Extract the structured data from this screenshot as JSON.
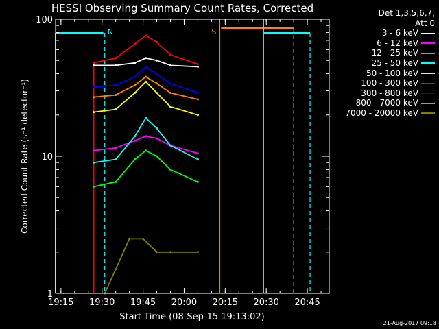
{
  "title": "HESSI Observing Summary Count Rates, Corrected",
  "legend_header": [
    "Det 1,3,5,6,7,",
    "Att 0"
  ],
  "footer_date": "21-Aug-2017 09:18",
  "chart_data": {
    "type": "line",
    "xlabel": "Start Time (08-Sep-15 19:13:02)",
    "ylabel": "Corrected Count Rate (s⁻¹ detector⁻¹)",
    "xlim": [
      "19:13:02",
      "20:53:00"
    ],
    "ylim": [
      1,
      100
    ],
    "y_scale": "log",
    "x_ticks": [
      "19:15",
      "19:30",
      "19:45",
      "20:00",
      "20:15",
      "20:30",
      "20:45"
    ],
    "y_ticks": [
      "1",
      "10",
      "100"
    ],
    "series": [
      {
        "name": "3 - 6 keV",
        "color": "#ffffff",
        "x": [
          "19:27",
          "19:35",
          "19:42",
          "19:46",
          "19:50",
          "19:55",
          "20:05"
        ],
        "values": [
          46,
          46,
          48,
          52,
          50,
          46,
          45
        ]
      },
      {
        "name": "6 - 12 keV",
        "color": "#ff00ff",
        "x": [
          "19:27",
          "19:35",
          "19:42",
          "19:46",
          "19:50",
          "19:55",
          "20:05"
        ],
        "values": [
          11,
          11.5,
          13,
          14,
          13.5,
          12,
          10.5
        ]
      },
      {
        "name": "12 - 25 keV",
        "color": "#00ff00",
        "x": [
          "19:27",
          "19:35",
          "19:42",
          "19:46",
          "19:50",
          "19:55",
          "20:05"
        ],
        "values": [
          6,
          6.5,
          9.5,
          11,
          10,
          8,
          6.5
        ]
      },
      {
        "name": "25 - 50 keV",
        "color": "#00ffff",
        "x": [
          "19:27",
          "19:35",
          "19:42",
          "19:46",
          "19:50",
          "19:55",
          "20:05"
        ],
        "values": [
          9,
          9.5,
          14,
          19,
          16,
          12,
          9.5
        ]
      },
      {
        "name": "50 - 100 keV",
        "color": "#ffff00",
        "x": [
          "19:27",
          "19:35",
          "19:42",
          "19:46",
          "19:50",
          "19:55",
          "20:05"
        ],
        "values": [
          21,
          22,
          29,
          35,
          29,
          23,
          20
        ]
      },
      {
        "name": "100 - 300 keV",
        "color": "#ff0000",
        "x": [
          "19:27",
          "19:35",
          "19:42",
          "19:46",
          "19:50",
          "19:55",
          "20:05"
        ],
        "values": [
          48,
          52,
          66,
          76,
          68,
          55,
          47
        ]
      },
      {
        "name": "300 - 800 keV",
        "color": "#0000ff",
        "x": [
          "19:27",
          "19:35",
          "19:42",
          "19:46",
          "19:50",
          "19:55",
          "20:05"
        ],
        "values": [
          32,
          33,
          38,
          45,
          40,
          34,
          29
        ]
      },
      {
        "name": "800 - 7000 keV",
        "color": "#ff8000",
        "x": [
          "19:27",
          "19:35",
          "19:42",
          "19:46",
          "19:50",
          "19:55",
          "20:05"
        ],
        "values": [
          27,
          28,
          33,
          38,
          34,
          29,
          26
        ]
      },
      {
        "name": "7000 - 20000 keV",
        "color": "#808000",
        "x": [
          "19:31",
          "19:35",
          "19:40",
          "19:45",
          "19:50",
          "19:55",
          "20:05"
        ],
        "values": [
          1,
          1.5,
          2.5,
          2.5,
          2,
          2,
          2
        ]
      }
    ],
    "annotations": [
      {
        "text": "N",
        "color": "#00ffff",
        "x": "19:31"
      },
      {
        "text": "S",
        "color": "#ff8000",
        "x": "20:13"
      }
    ]
  }
}
